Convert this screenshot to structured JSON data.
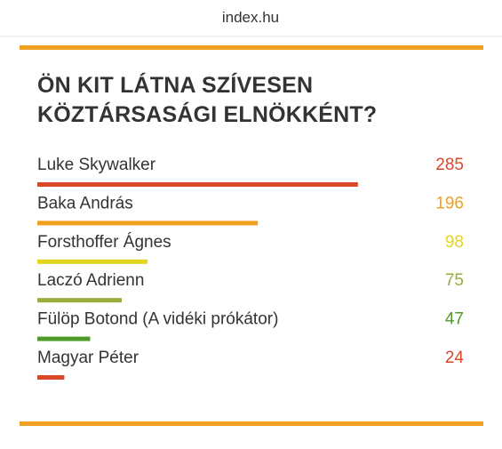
{
  "site": "index.hu",
  "chart_data": {
    "type": "hbar",
    "title": "ÖN KIT LÁTNA SZÍVESEN KÖZTÁRSASÁGI ELNÖKKÉNT?",
    "categories": [
      "Luke Skywalker",
      "Baka András",
      "Forsthoffer Ágnes",
      "Laczó Adrienn",
      "Fülöp Botond (A vidéki prókátor)",
      "Magyar Péter"
    ],
    "values": [
      285,
      196,
      98,
      75,
      47,
      24
    ],
    "colors": [
      "#d9472b",
      "#f0a020",
      "#e3d41e",
      "#9aad3c",
      "#4e9a2a",
      "#d9472b"
    ]
  }
}
